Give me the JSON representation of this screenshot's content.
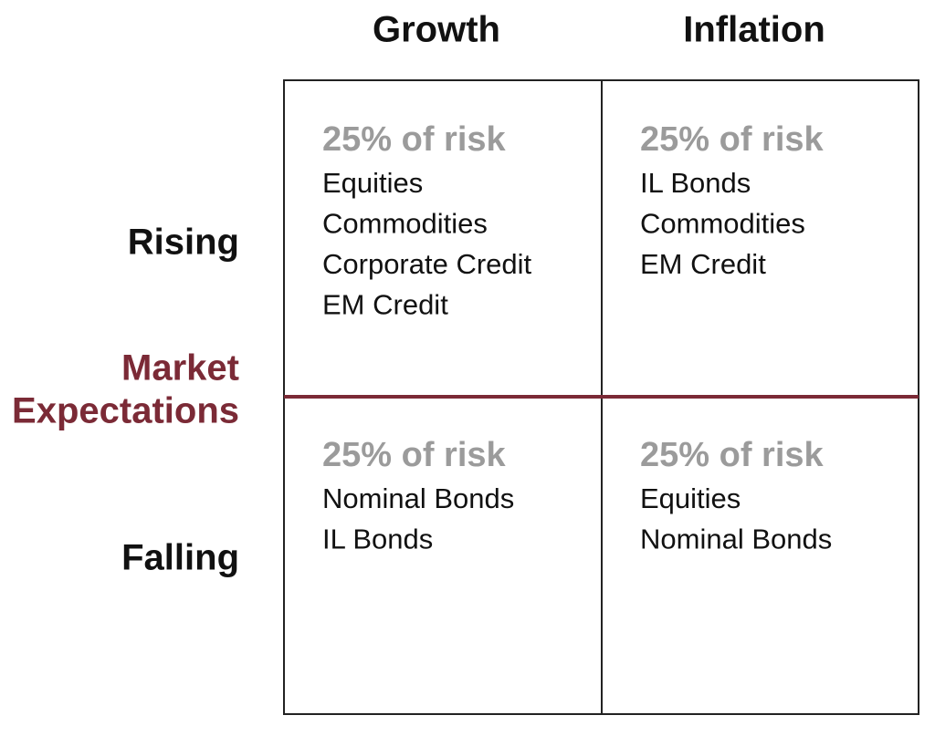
{
  "columns": [
    "Growth",
    "Inflation"
  ],
  "rows": [
    "Rising",
    "Falling"
  ],
  "center_label": [
    "Market",
    "Expectations"
  ],
  "cells": [
    [
      {
        "heading": "25% of risk",
        "items": [
          "Equities",
          "Commodities",
          "Corporate Credit",
          "EM Credit"
        ]
      },
      {
        "heading": "25% of risk",
        "items": [
          "IL Bonds",
          "Commodities",
          "EM Credit"
        ]
      }
    ],
    [
      {
        "heading": "25% of risk",
        "items": [
          "Nominal Bonds",
          "IL Bonds"
        ]
      },
      {
        "heading": "25% of risk",
        "items": [
          "Equities",
          "Nominal Bonds"
        ]
      }
    ]
  ]
}
